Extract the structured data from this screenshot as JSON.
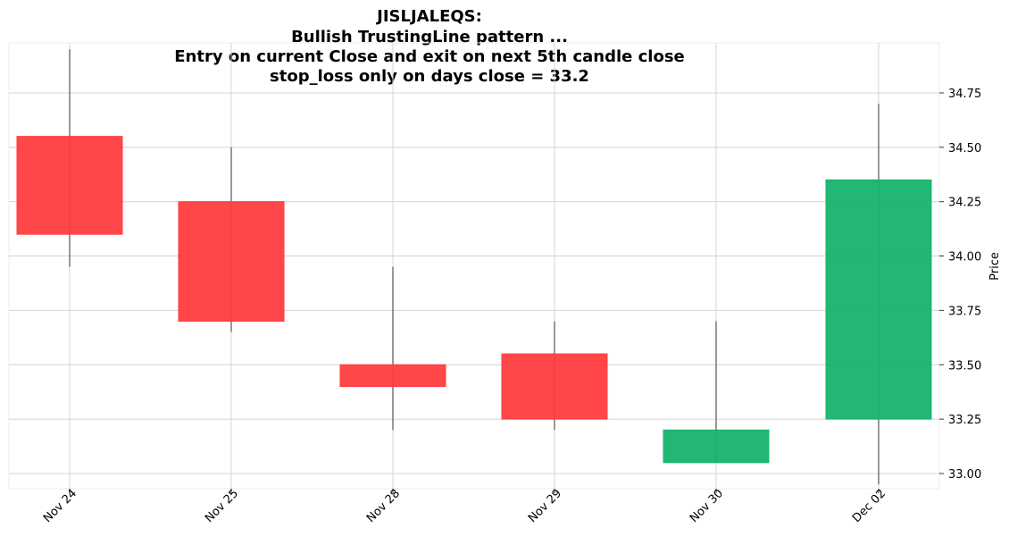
{
  "chart_data": {
    "type": "candlestick",
    "title_lines": [
      "JISLJALEQS:",
      "Bullish TrustingLine pattern ...",
      "Entry on current Close and exit on next 5th candle close",
      "stop_loss only on days close = 33.2"
    ],
    "ylabel": "Price",
    "ylim": [
      32.93,
      34.98
    ],
    "yticks": [
      {
        "value": 33.0,
        "label": "33.00"
      },
      {
        "value": 33.25,
        "label": "33.25"
      },
      {
        "value": 33.5,
        "label": "33.50"
      },
      {
        "value": 33.75,
        "label": "33.75"
      },
      {
        "value": 34.0,
        "label": "34.00"
      },
      {
        "value": 34.25,
        "label": "34.25"
      },
      {
        "value": 34.5,
        "label": "34.50"
      },
      {
        "value": 34.75,
        "label": "34.75"
      }
    ],
    "grid": true,
    "up_color": "#16b46c",
    "down_color": "#ff3c3f",
    "wick_color": "#555555",
    "candles": [
      {
        "date": "Nov 24",
        "open": 34.55,
        "high": 34.95,
        "low": 33.95,
        "close": 34.1
      },
      {
        "date": "Nov 25",
        "open": 34.25,
        "high": 34.5,
        "low": 33.65,
        "close": 33.7
      },
      {
        "date": "Nov 28",
        "open": 33.5,
        "high": 33.95,
        "low": 33.2,
        "close": 33.4
      },
      {
        "date": "Nov 29",
        "open": 33.55,
        "high": 33.7,
        "low": 33.2,
        "close": 33.25
      },
      {
        "date": "Nov 30",
        "open": 33.05,
        "high": 33.7,
        "low": 33.05,
        "close": 33.2
      },
      {
        "date": "Dec 02",
        "open": 33.25,
        "high": 34.7,
        "low": 32.95,
        "close": 34.35
      }
    ]
  }
}
